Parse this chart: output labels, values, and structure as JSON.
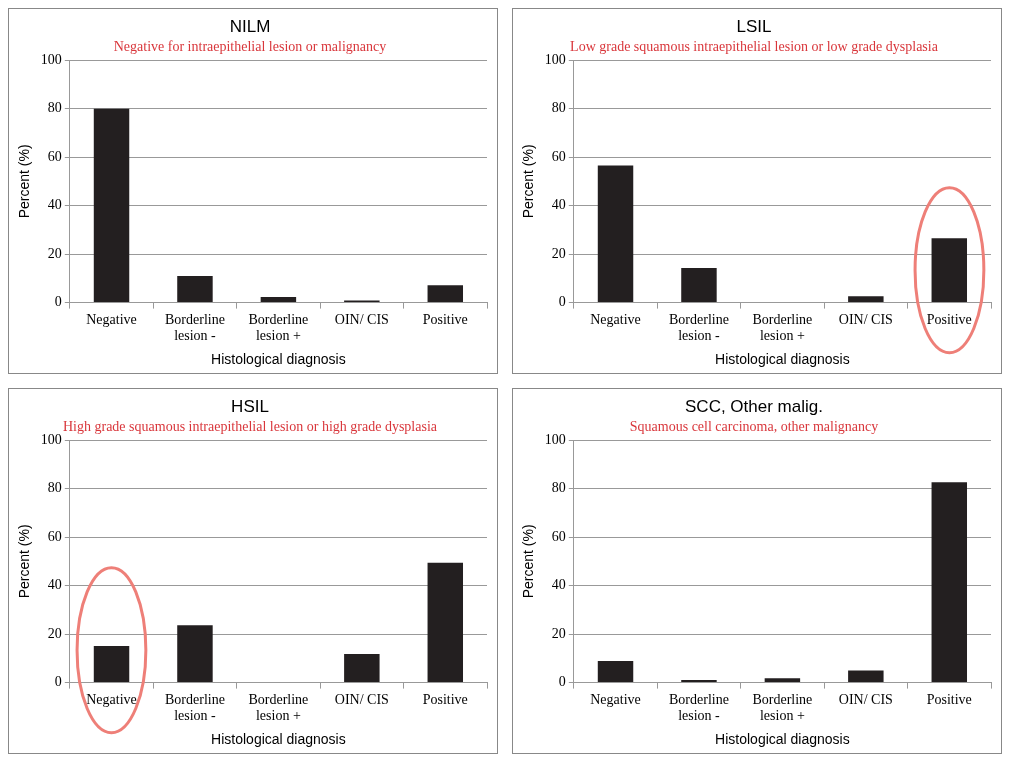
{
  "chart_data": [
    {
      "type": "bar",
      "title": "NILM",
      "subtitle": "Negative for intraepithelial lesion or malignancy",
      "xlabel": "Histological diagnosis",
      "ylabel": "Percent (%)",
      "categories": [
        "Negative",
        "Borderline\nlesion -",
        "Borderline\nlesion +",
        "OIN/ CIS",
        "Positive"
      ],
      "values": [
        80,
        11,
        2.3,
        0.9,
        7.2
      ],
      "color": "#231f20",
      "ylim": [
        0,
        100
      ],
      "yticks": [
        0,
        20,
        40,
        60,
        80,
        100
      ],
      "grid": "y",
      "legend": false
    },
    {
      "type": "bar",
      "title": "LSIL",
      "subtitle": "Low grade squamous intraepithelial lesion or low grade dysplasia",
      "xlabel": "Histological diagnosis",
      "ylabel": "Percent (%)",
      "categories": [
        "Negative",
        "Borderline\nlesion -",
        "Borderline\nlesion +",
        "OIN/ CIS",
        "Positive"
      ],
      "values": [
        56.6,
        14.3,
        0,
        2.6,
        26.5
      ],
      "color": "#231f20",
      "ylim": [
        0,
        100
      ],
      "yticks": [
        0,
        20,
        40,
        60,
        80,
        100
      ],
      "grid": "y",
      "legend": false
    },
    {
      "type": "bar",
      "title": "HSIL",
      "subtitle": "High grade squamous intraepithelial lesion or high grade dysplasia",
      "xlabel": "Histological diagnosis",
      "ylabel": "Percent (%)",
      "categories": [
        "Negative",
        "Borderline\nlesion -",
        "Borderline\nlesion +",
        "OIN/ CIS",
        "Positive"
      ],
      "values": [
        15.1,
        23.7,
        0,
        11.8,
        49.4
      ],
      "color": "#231f20",
      "ylim": [
        0,
        100
      ],
      "yticks": [
        0,
        20,
        40,
        60,
        80,
        100
      ],
      "grid": "y",
      "legend": false
    },
    {
      "type": "bar",
      "title": "SCC, Other malig.",
      "subtitle": "Squamous cell carcinoma, other malignancy",
      "xlabel": "Histological diagnosis",
      "ylabel": "Percent (%)",
      "categories": [
        "Negative",
        "Borderline\nlesion -",
        "Borderline\nlesion +",
        "OIN/ CIS",
        "Positive"
      ],
      "values": [
        8.9,
        1.1,
        1.8,
        5,
        82.7
      ],
      "color": "#231f20",
      "ylim": [
        0,
        100
      ],
      "yticks": [
        0,
        20,
        40,
        60,
        80,
        100
      ],
      "grid": "y",
      "legend": false
    }
  ]
}
